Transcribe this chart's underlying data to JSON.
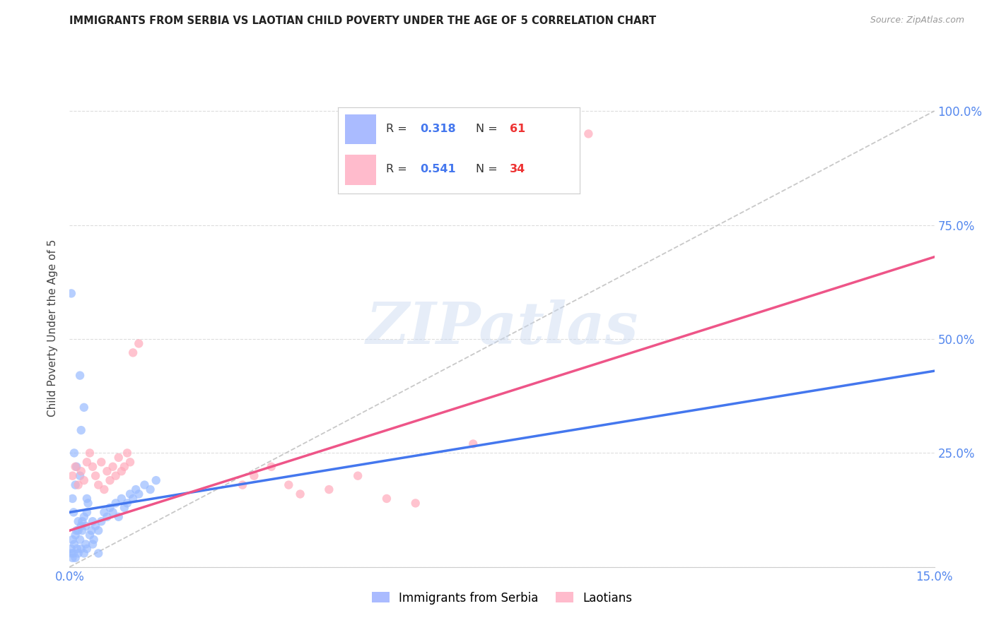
{
  "title": "IMMIGRANTS FROM SERBIA VS LAOTIAN CHILD POVERTY UNDER THE AGE OF 5 CORRELATION CHART",
  "source": "Source: ZipAtlas.com",
  "ylabel": "Child Poverty Under the Age of 5",
  "xlim": [
    0,
    0.15
  ],
  "ylim": [
    0,
    1.05
  ],
  "xticks": [
    0.0,
    0.03,
    0.06,
    0.09,
    0.12,
    0.15
  ],
  "xtick_labels": [
    "0.0%",
    "",
    "",
    "",
    "",
    "15.0%"
  ],
  "ytick_labels_right": [
    "",
    "25.0%",
    "50.0%",
    "75.0%",
    "100.0%"
  ],
  "yticks_right": [
    0,
    0.25,
    0.5,
    0.75,
    1.0
  ],
  "watermark_text": "ZIPatlas",
  "serbia_color": "#99bbff",
  "laotian_color": "#ffaabb",
  "serbia_line_color": "#4477ee",
  "laotian_line_color": "#ee5588",
  "diagonal_color": "#bbbbbb",
  "serbia_scatter": [
    [
      0.0005,
      0.15
    ],
    [
      0.0007,
      0.12
    ],
    [
      0.001,
      0.18
    ],
    [
      0.0012,
      0.22
    ],
    [
      0.0015,
      0.08
    ],
    [
      0.0008,
      0.25
    ],
    [
      0.0018,
      0.2
    ],
    [
      0.002,
      0.3
    ],
    [
      0.0022,
      0.1
    ],
    [
      0.0025,
      0.35
    ],
    [
      0.0018,
      0.42
    ],
    [
      0.003,
      0.15
    ],
    [
      0.0005,
      0.06
    ],
    [
      0.0003,
      0.04
    ],
    [
      0.0008,
      0.05
    ],
    [
      0.001,
      0.07
    ],
    [
      0.0012,
      0.08
    ],
    [
      0.0015,
      0.1
    ],
    [
      0.0018,
      0.06
    ],
    [
      0.002,
      0.09
    ],
    [
      0.0022,
      0.08
    ],
    [
      0.0025,
      0.11
    ],
    [
      0.0028,
      0.09
    ],
    [
      0.003,
      0.12
    ],
    [
      0.0032,
      0.14
    ],
    [
      0.0035,
      0.07
    ],
    [
      0.0038,
      0.08
    ],
    [
      0.004,
      0.1
    ],
    [
      0.0042,
      0.06
    ],
    [
      0.0045,
      0.09
    ],
    [
      0.005,
      0.08
    ],
    [
      0.0055,
      0.1
    ],
    [
      0.006,
      0.12
    ],
    [
      0.0065,
      0.11
    ],
    [
      0.007,
      0.13
    ],
    [
      0.0075,
      0.12
    ],
    [
      0.008,
      0.14
    ],
    [
      0.0085,
      0.11
    ],
    [
      0.009,
      0.15
    ],
    [
      0.0095,
      0.13
    ],
    [
      0.01,
      0.14
    ],
    [
      0.0105,
      0.16
    ],
    [
      0.011,
      0.15
    ],
    [
      0.0115,
      0.17
    ],
    [
      0.012,
      0.16
    ],
    [
      0.013,
      0.18
    ],
    [
      0.014,
      0.17
    ],
    [
      0.015,
      0.19
    ],
    [
      0.0003,
      0.03
    ],
    [
      0.0005,
      0.02
    ],
    [
      0.0007,
      0.03
    ],
    [
      0.001,
      0.02
    ],
    [
      0.0013,
      0.04
    ],
    [
      0.0015,
      0.03
    ],
    [
      0.002,
      0.04
    ],
    [
      0.0025,
      0.03
    ],
    [
      0.0028,
      0.05
    ],
    [
      0.003,
      0.04
    ],
    [
      0.004,
      0.05
    ],
    [
      0.005,
      0.03
    ],
    [
      0.0003,
      0.6
    ]
  ],
  "laotian_scatter": [
    [
      0.0005,
      0.2
    ],
    [
      0.001,
      0.22
    ],
    [
      0.0015,
      0.18
    ],
    [
      0.002,
      0.21
    ],
    [
      0.0025,
      0.19
    ],
    [
      0.003,
      0.23
    ],
    [
      0.0035,
      0.25
    ],
    [
      0.004,
      0.22
    ],
    [
      0.0045,
      0.2
    ],
    [
      0.005,
      0.18
    ],
    [
      0.0055,
      0.23
    ],
    [
      0.006,
      0.17
    ],
    [
      0.0065,
      0.21
    ],
    [
      0.007,
      0.19
    ],
    [
      0.0075,
      0.22
    ],
    [
      0.008,
      0.2
    ],
    [
      0.0085,
      0.24
    ],
    [
      0.009,
      0.21
    ],
    [
      0.0095,
      0.22
    ],
    [
      0.01,
      0.25
    ],
    [
      0.0105,
      0.23
    ],
    [
      0.011,
      0.47
    ],
    [
      0.012,
      0.49
    ],
    [
      0.03,
      0.18
    ],
    [
      0.032,
      0.2
    ],
    [
      0.035,
      0.22
    ],
    [
      0.038,
      0.18
    ],
    [
      0.04,
      0.16
    ],
    [
      0.045,
      0.17
    ],
    [
      0.05,
      0.2
    ],
    [
      0.055,
      0.15
    ],
    [
      0.06,
      0.14
    ],
    [
      0.07,
      0.27
    ],
    [
      0.09,
      0.95
    ]
  ],
  "serbia_line_x": [
    0.0,
    0.15
  ],
  "serbia_line_y": [
    0.12,
    0.43
  ],
  "laotian_line_x": [
    0.0,
    0.15
  ],
  "laotian_line_y": [
    0.08,
    0.68
  ],
  "diagonal_line_x": [
    0.0,
    0.15
  ],
  "diagonal_line_y": [
    0.0,
    1.0
  ]
}
